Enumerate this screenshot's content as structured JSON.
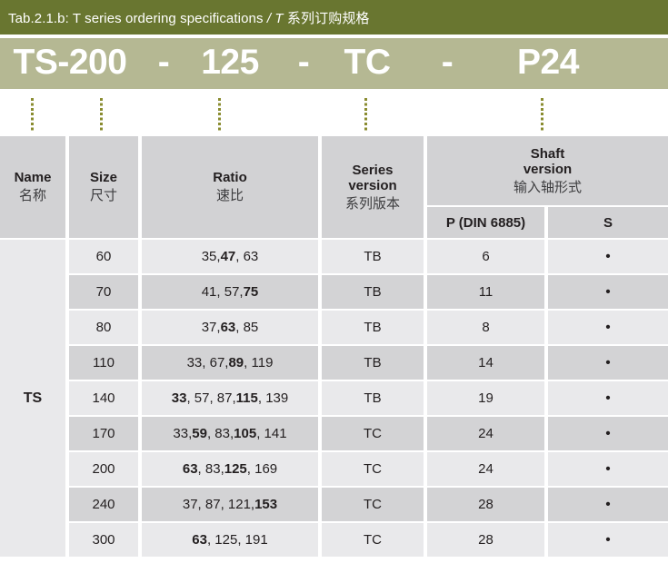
{
  "caption": {
    "pre": "Tab.2.1.b: T series ordering specifications ",
    "italic": "/ T ",
    "zh": "系列订购规格"
  },
  "order_code": {
    "items": [
      "TS-200",
      "-",
      "125",
      "-",
      "TC",
      "-",
      "P24"
    ]
  },
  "table": {
    "headers": {
      "name": {
        "en": "Name",
        "zh": "名称"
      },
      "size": {
        "en": "Size",
        "zh": "尺寸"
      },
      "ratio": {
        "en": "Ratio",
        "zh": "速比"
      },
      "series": {
        "en": "Series\nversion",
        "zh": "系列版本"
      },
      "shaft": {
        "en": "Shaft\nversion",
        "zh": "输入轴形式"
      },
      "shaft_sub": [
        "P (DIN 6885)",
        "S"
      ]
    },
    "name_value": "TS",
    "rows": [
      {
        "size": "60",
        "ratio": [
          [
            "35, ",
            0
          ],
          [
            "47",
            1
          ],
          [
            ", 63",
            0
          ]
        ],
        "series": "TB",
        "p": "6",
        "s": "•"
      },
      {
        "size": "70",
        "ratio": [
          [
            "41, 57, ",
            0
          ],
          [
            "75",
            1
          ]
        ],
        "series": "TB",
        "p": "11",
        "s": "•"
      },
      {
        "size": "80",
        "ratio": [
          [
            "37, ",
            0
          ],
          [
            "63",
            1
          ],
          [
            ", 85",
            0
          ]
        ],
        "series": "TB",
        "p": "8",
        "s": "•"
      },
      {
        "size": "110",
        "ratio": [
          [
            "33, 67, ",
            0
          ],
          [
            "89",
            1
          ],
          [
            ", 119",
            0
          ]
        ],
        "series": "TB",
        "p": "14",
        "s": "•"
      },
      {
        "size": "140",
        "ratio": [
          [
            "33",
            1
          ],
          [
            ", 57, 87, ",
            0
          ],
          [
            "115",
            1
          ],
          [
            ", 139",
            0
          ]
        ],
        "series": "TB",
        "p": "19",
        "s": "•"
      },
      {
        "size": "170",
        "ratio": [
          [
            "33, ",
            0
          ],
          [
            "59",
            1
          ],
          [
            ", 83, ",
            0
          ],
          [
            "105",
            1
          ],
          [
            ", 141",
            0
          ]
        ],
        "series": "TC",
        "p": "24",
        "s": "•"
      },
      {
        "size": "200",
        "ratio": [
          [
            "63",
            1
          ],
          [
            ", 83, ",
            0
          ],
          [
            "125",
            1
          ],
          [
            ", 169",
            0
          ]
        ],
        "series": "TC",
        "p": "24",
        "s": "•"
      },
      {
        "size": "240",
        "ratio": [
          [
            "37, 87, 121, ",
            0
          ],
          [
            "153",
            1
          ]
        ],
        "series": "TC",
        "p": "28",
        "s": "•"
      },
      {
        "size": "300",
        "ratio": [
          [
            "63",
            1
          ],
          [
            ", 125, 191",
            0
          ]
        ],
        "series": "TC",
        "p": "28",
        "s": "•"
      }
    ]
  },
  "colors": {
    "header_bar": "#697630",
    "code_band": "#b5b893",
    "dot_line": "#8a8c30",
    "header_cell": "#d2d2d4",
    "row_light": "#e9e9eb",
    "row_dark": "#d3d3d5"
  }
}
